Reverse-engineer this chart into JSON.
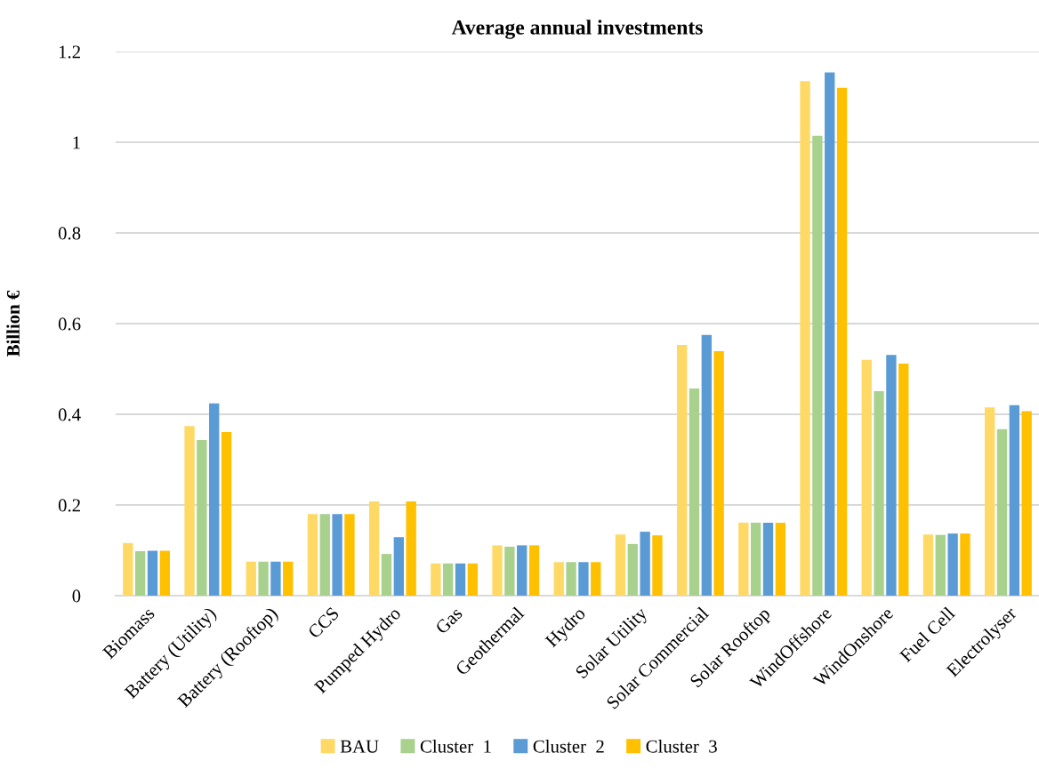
{
  "chart_data": {
    "type": "bar",
    "title": "Average annual investments",
    "ylabel": "Billion €",
    "categories": [
      "Biomass",
      "Battery (Utility)",
      "Battery (Rooftop)",
      "CCS",
      "Pumped Hydro",
      "Gas",
      "Geothermal",
      "Hydro",
      "Solar Utility",
      "Solar Commercial",
      "Solar Rooftop",
      "WindOffshore",
      "WindOnshore",
      "Fuel Cell",
      "Electrolyser"
    ],
    "series": [
      {
        "name": "BAU",
        "color": "#ffd966",
        "values": [
          0.116,
          0.374,
          0.075,
          0.18,
          0.208,
          0.071,
          0.111,
          0.074,
          0.135,
          0.553,
          0.161,
          1.135,
          0.52,
          0.135,
          0.415
        ]
      },
      {
        "name": "Cluster  1",
        "color": "#a9d18e",
        "values": [
          0.098,
          0.343,
          0.075,
          0.18,
          0.092,
          0.071,
          0.108,
          0.074,
          0.114,
          0.457,
          0.161,
          1.014,
          0.451,
          0.134,
          0.367
        ]
      },
      {
        "name": "Cluster  2",
        "color": "#5b9bd5",
        "values": [
          0.099,
          0.424,
          0.075,
          0.18,
          0.129,
          0.071,
          0.111,
          0.074,
          0.141,
          0.575,
          0.161,
          1.154,
          0.531,
          0.137,
          0.42
        ]
      },
      {
        "name": "Cluster  3",
        "color": "#ffc000",
        "values": [
          0.099,
          0.361,
          0.075,
          0.18,
          0.208,
          0.071,
          0.111,
          0.074,
          0.133,
          0.539,
          0.161,
          1.12,
          0.512,
          0.137,
          0.407
        ]
      }
    ],
    "ylim": [
      0,
      1.2
    ],
    "yticks": [
      0,
      0.2,
      0.4,
      0.6,
      0.8,
      1,
      1.2
    ],
    "grid": "y",
    "legend": "bottom"
  }
}
